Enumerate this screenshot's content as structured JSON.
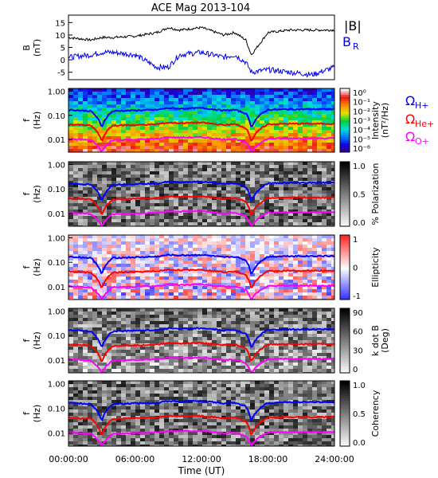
{
  "title": "ACE Mag 2013-104",
  "xlabel": "Time (UT)",
  "x_ticks": [
    "00:00:00",
    "06:00:00",
    "12:00:00",
    "18:00:00",
    "24:00:00"
  ],
  "legend": {
    "b_total": "|B|",
    "b_r": "B",
    "b_r_sub": "R",
    "omega_h": "Ω",
    "omega_h_sub": "H+",
    "omega_he": "Ω",
    "omega_he_sub": "He+",
    "omega_o": "Ω",
    "omega_o_sub": "O+"
  },
  "colors": {
    "b_total": "#000000",
    "b_r": "#0000ee",
    "omega_h": "#0000ff",
    "omega_he": "#ff0000",
    "omega_o": "#ff00ff"
  },
  "panels": {
    "mag": {
      "ylabel": "B",
      "yunit": "(nT)",
      "yticks": [
        "15",
        "10",
        "5",
        "0",
        "-5"
      ]
    },
    "f_ylabel": "f",
    "f_yunit": "(Hz)",
    "f_yticks": [
      "1.00",
      "0.10",
      "0.01"
    ],
    "intensity": {
      "cb_label1": "Intensity",
      "cb_label2": "(nT²/Hz)",
      "cb_ticks": [
        "10⁰",
        "10⁻¹",
        "10⁻²",
        "10⁻³",
        "10⁻⁴",
        "10⁻⁵",
        "10⁻⁶"
      ]
    },
    "polarization": {
      "cb_label": "% Polarization",
      "cb_ticks": [
        "1.0",
        "0.5",
        "0.0"
      ]
    },
    "ellipticity": {
      "cb_label": "Ellipticity",
      "cb_ticks": [
        "1",
        "0",
        "-1"
      ]
    },
    "kdotb": {
      "cb_label1": "k dot B",
      "cb_label2": "(Deg)",
      "cb_ticks": [
        "90",
        "60",
        "30",
        "0"
      ]
    },
    "coherency": {
      "cb_label": "Coherency",
      "cb_ticks": [
        "1.0",
        "0.5",
        "0.0"
      ]
    }
  },
  "chart_data": {
    "type": "line",
    "title": "ACE Mag 2013-104",
    "xlabel": "Time (UT)",
    "x_hours": [
      0,
      2,
      3,
      4,
      6,
      8,
      9,
      10,
      12,
      14,
      15,
      16,
      16.5,
      18,
      20,
      22,
      24
    ],
    "series": [
      {
        "name": "|B|",
        "values": [
          9,
          8,
          9,
          9,
          9.5,
          11,
          13,
          12,
          13,
          10,
          11,
          8,
          2,
          11,
          12,
          12,
          12
        ]
      },
      {
        "name": "B_R",
        "values": [
          1,
          2,
          3,
          3,
          2,
          -3,
          -3,
          2,
          3,
          1,
          2,
          -1,
          -5,
          -4,
          -5,
          -6,
          -3
        ]
      },
      {
        "name": "Ω_H+",
        "values": [
          0.17,
          0.15,
          0.03,
          0.15,
          0.16,
          0.17,
          0.2,
          0.19,
          0.2,
          0.16,
          0.17,
          0.12,
          0.03,
          0.17,
          0.18,
          0.18,
          0.18
        ]
      },
      {
        "name": "Ω_He+",
        "values": [
          0.042,
          0.038,
          0.008,
          0.038,
          0.04,
          0.043,
          0.05,
          0.048,
          0.05,
          0.04,
          0.043,
          0.03,
          0.008,
          0.043,
          0.045,
          0.045,
          0.045
        ]
      },
      {
        "name": "Ω_O+",
        "values": [
          0.0105,
          0.0095,
          0.003,
          0.0095,
          0.01,
          0.0107,
          0.0125,
          0.012,
          0.0125,
          0.01,
          0.0107,
          0.0075,
          0.003,
          0.0107,
          0.0112,
          0.0112,
          0.0112
        ]
      }
    ],
    "xlim": [
      0,
      24
    ],
    "mag_ylim": [
      -8,
      18
    ],
    "freq_ylim": [
      0.003,
      1.3
    ],
    "freq_scale": "log"
  }
}
